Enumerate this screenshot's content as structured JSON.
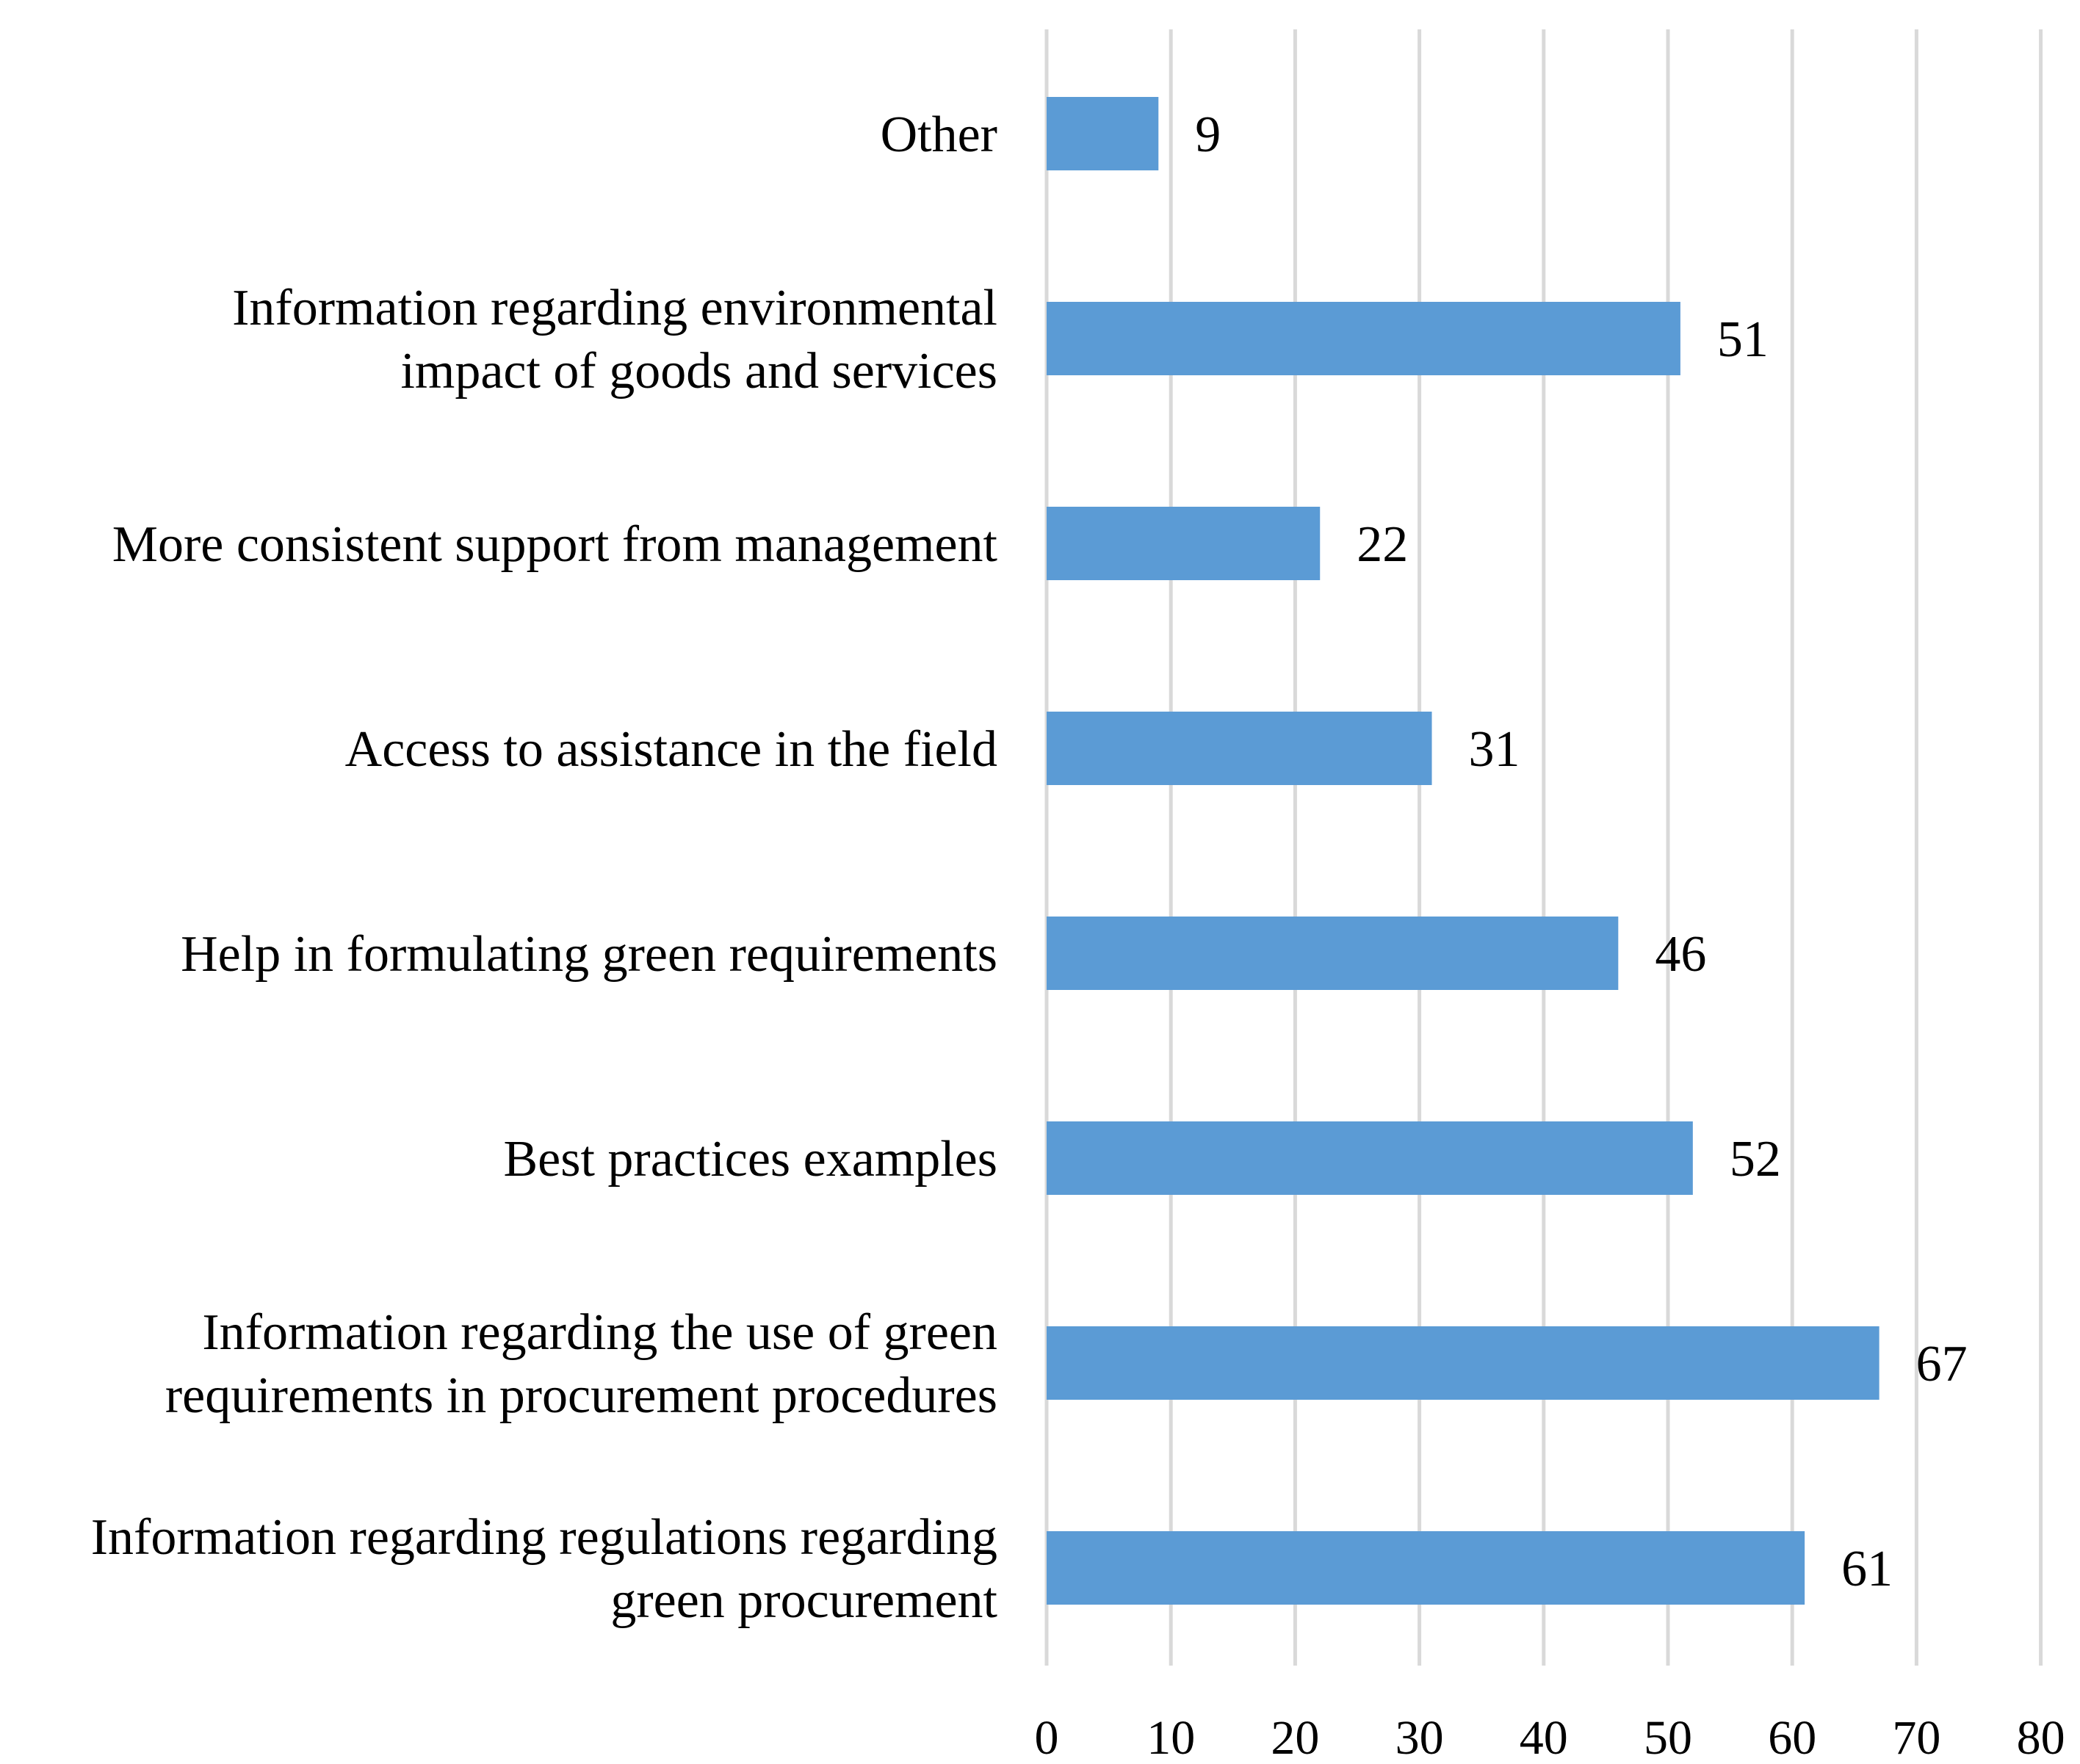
{
  "chart_data": {
    "type": "bar",
    "orientation": "horizontal",
    "title": "",
    "xlabel": "",
    "ylabel": "",
    "xlim": [
      0,
      80
    ],
    "xticks": [
      0,
      10,
      20,
      30,
      40,
      50,
      60,
      70,
      80
    ],
    "grid": true,
    "legend": "none",
    "bar_color": "#5b9bd5",
    "grid_color": "#d9d9d9",
    "categories": [
      [
        "Other"
      ],
      [
        "Information regarding environmental",
        "impact of goods and services"
      ],
      [
        "More consistent support from management"
      ],
      [
        "Access to assistance in the field"
      ],
      [
        "Help in formulating green requirements"
      ],
      [
        "Best practices examples"
      ],
      [
        "Information regarding the use of green",
        "requirements in procurement procedures"
      ],
      [
        "Information regarding regulations regarding",
        "green procurement"
      ]
    ],
    "values": [
      9,
      51,
      22,
      31,
      46,
      52,
      67,
      61
    ]
  }
}
